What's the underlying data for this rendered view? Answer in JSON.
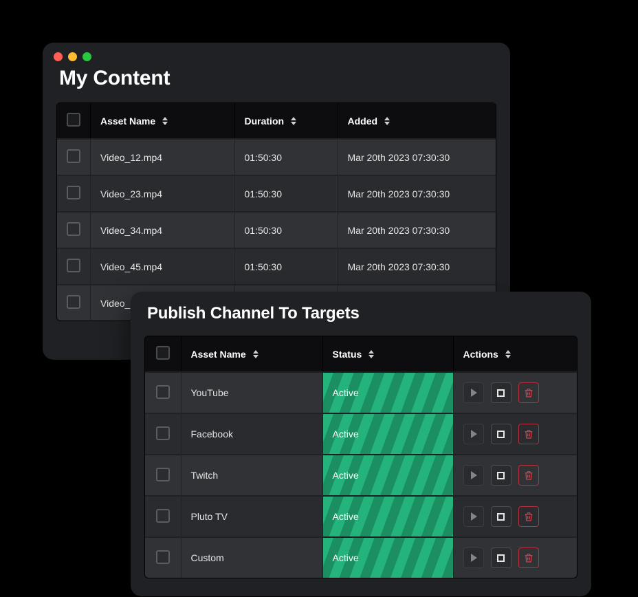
{
  "colors": {
    "page_bg": "#000000",
    "window_bg": "#1f2124",
    "header_bg": "#0d0d0f",
    "row_bg": "#313236",
    "row_alt_bg": "#2a2b2f",
    "text": "#e8e8e8",
    "stripe_a": "#24b37a",
    "stripe_b": "#1b8f62",
    "delete_border": "#b5303a",
    "delete_icon": "#d9414b",
    "tl_red": "#ff5f57",
    "tl_yellow": "#febc2e",
    "tl_green": "#28c840"
  },
  "window1": {
    "title": "My Content",
    "columns": {
      "name": "Asset Name",
      "duration": "Duration",
      "added": "Added"
    },
    "rows": [
      {
        "name": "Video_12.mp4",
        "duration": "01:50:30",
        "added": "Mar 20th 2023 07:30:30"
      },
      {
        "name": "Video_23.mp4",
        "duration": "01:50:30",
        "added": "Mar 20th 2023 07:30:30"
      },
      {
        "name": "Video_34.mp4",
        "duration": "01:50:30",
        "added": "Mar 20th 2023 07:30:30"
      },
      {
        "name": "Video_45.mp4",
        "duration": "01:50:30",
        "added": "Mar 20th 2023 07:30:30"
      },
      {
        "name": "Video_",
        "duration": "",
        "added": ""
      }
    ]
  },
  "window2": {
    "title": "Publish Channel To Targets",
    "columns": {
      "name": "Asset Name",
      "status": "Status",
      "actions": "Actions"
    },
    "rows": [
      {
        "name": "YouTube",
        "status": "Active"
      },
      {
        "name": "Facebook",
        "status": "Active"
      },
      {
        "name": "Twitch",
        "status": "Active"
      },
      {
        "name": "Pluto TV",
        "status": "Active"
      },
      {
        "name": "Custom",
        "status": "Active"
      }
    ]
  }
}
